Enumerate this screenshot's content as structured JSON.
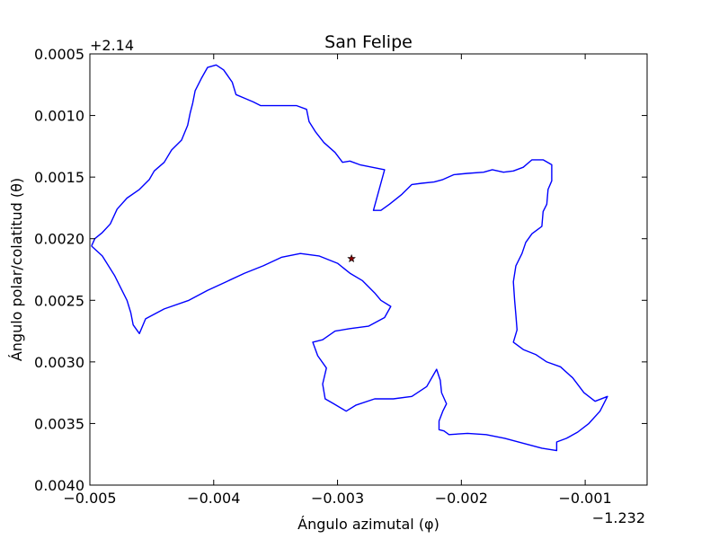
{
  "chart_data": {
    "type": "line",
    "title": "San Felipe",
    "xlabel": "Ángulo azimutal (φ)",
    "ylabel": "Ángulo polar/colatitud (θ)",
    "x_offset_label": "−1.232",
    "y_offset_label": "+2.14",
    "xlim": [
      -0.005,
      -0.0005
    ],
    "ylim": [
      0.0005,
      0.004
    ],
    "y_inverted": true,
    "x_ticks": [
      -0.005,
      -0.004,
      -0.003,
      -0.002,
      -0.001
    ],
    "x_tick_labels": [
      "−0.005",
      "−0.004",
      "−0.003",
      "−0.002",
      "−0.001"
    ],
    "y_ticks": [
      0.0005,
      0.001,
      0.0015,
      0.002,
      0.0025,
      0.003,
      0.0035,
      0.004
    ],
    "y_tick_labels": [
      "0.0005",
      "0.0010",
      "0.0015",
      "0.0020",
      "0.0025",
      "0.0030",
      "0.0035",
      "0.0040"
    ],
    "grid": false,
    "line_color": "#0000ff",
    "marker_color": "#8b0000",
    "series": [
      {
        "values": [
          [
            -0.004987,
            0.00206
          ],
          [
            -0.00496,
            0.002
          ],
          [
            -0.0049,
            0.00195
          ],
          [
            -0.004835,
            0.00188
          ],
          [
            -0.00478,
            0.00176
          ],
          [
            -0.0047,
            0.00167
          ],
          [
            -0.0046,
            0.0016
          ],
          [
            -0.00452,
            0.00152
          ],
          [
            -0.00448,
            0.00145
          ],
          [
            -0.0044,
            0.00138
          ],
          [
            -0.00434,
            0.00128
          ],
          [
            -0.00426,
            0.0012
          ],
          [
            -0.00421,
            0.00108
          ],
          [
            -0.00419,
            0.00098
          ],
          [
            -0.00417,
            0.0009
          ],
          [
            -0.00415,
            0.0008
          ],
          [
            -0.0041,
            0.0007
          ],
          [
            -0.00405,
            0.00061
          ],
          [
            -0.00398,
            0.00059
          ],
          [
            -0.00392,
            0.00063
          ],
          [
            -0.00385,
            0.00073
          ],
          [
            -0.00382,
            0.00083
          ],
          [
            -0.00375,
            0.00086
          ],
          [
            -0.00368,
            0.00089
          ],
          [
            -0.00362,
            0.00092
          ],
          [
            -0.00352,
            0.00092
          ],
          [
            -0.00341,
            0.00092
          ],
          [
            -0.00333,
            0.00092
          ],
          [
            -0.00325,
            0.00095
          ],
          [
            -0.00323,
            0.00105
          ],
          [
            -0.00318,
            0.00113
          ],
          [
            -0.00311,
            0.00122
          ],
          [
            -0.00302,
            0.0013
          ],
          [
            -0.00296,
            0.00138
          ],
          [
            -0.0029,
            0.00137
          ],
          [
            -0.00282,
            0.0014
          ],
          [
            -0.00272,
            0.00142
          ],
          [
            -0.00262,
            0.00144
          ],
          [
            -0.00271,
            0.00177
          ],
          [
            -0.00265,
            0.00177
          ],
          [
            -0.00258,
            0.00172
          ],
          [
            -0.00248,
            0.00164
          ],
          [
            -0.0024,
            0.00156
          ],
          [
            -0.00232,
            0.00155
          ],
          [
            -0.00222,
            0.00154
          ],
          [
            -0.00215,
            0.00152
          ],
          [
            -0.00206,
            0.00148
          ],
          [
            -0.00195,
            0.00147
          ],
          [
            -0.00182,
            0.00146
          ],
          [
            -0.00175,
            0.00144
          ],
          [
            -0.00166,
            0.00146
          ],
          [
            -0.00158,
            0.00145
          ],
          [
            -0.0015,
            0.00142
          ],
          [
            -0.00143,
            0.00136
          ],
          [
            -0.00134,
            0.00136
          ],
          [
            -0.00127,
            0.0014
          ],
          [
            -0.00127,
            0.00153
          ],
          [
            -0.0013,
            0.0016
          ],
          [
            -0.00131,
            0.00172
          ],
          [
            -0.00134,
            0.00178
          ],
          [
            -0.00135,
            0.0019
          ],
          [
            -0.00143,
            0.00196
          ],
          [
            -0.00148,
            0.00203
          ],
          [
            -0.00151,
            0.00212
          ],
          [
            -0.00156,
            0.00222
          ],
          [
            -0.00158,
            0.00235
          ],
          [
            -0.00157,
            0.0025
          ],
          [
            -0.00156,
            0.00262
          ],
          [
            -0.00155,
            0.00274
          ],
          [
            -0.00158,
            0.00284
          ],
          [
            -0.0015,
            0.0029
          ],
          [
            -0.0014,
            0.00294
          ],
          [
            -0.00131,
            0.003
          ],
          [
            -0.0012,
            0.00304
          ],
          [
            -0.0011,
            0.00313
          ],
          [
            -0.00101,
            0.00325
          ],
          [
            -0.00092,
            0.00332
          ],
          [
            -0.00082,
            0.00328
          ],
          [
            -0.00088,
            0.0034
          ],
          [
            -0.00097,
            0.0035
          ],
          [
            -0.00106,
            0.00357
          ],
          [
            -0.00115,
            0.00362
          ],
          [
            -0.00123,
            0.00365
          ],
          [
            -0.00123,
            0.00372
          ],
          [
            -0.00135,
            0.0037
          ],
          [
            -0.0015,
            0.00366
          ],
          [
            -0.00165,
            0.00362
          ],
          [
            -0.0018,
            0.00359
          ],
          [
            -0.00195,
            0.00358
          ],
          [
            -0.0021,
            0.00359
          ],
          [
            -0.00214,
            0.00356
          ],
          [
            -0.00218,
            0.00355
          ],
          [
            -0.00218,
            0.00348
          ],
          [
            -0.00215,
            0.0034
          ],
          [
            -0.00212,
            0.00334
          ],
          [
            -0.00216,
            0.00325
          ],
          [
            -0.00217,
            0.00315
          ],
          [
            -0.0022,
            0.00306
          ],
          [
            -0.00228,
            0.0032
          ],
          [
            -0.0024,
            0.00328
          ],
          [
            -0.00255,
            0.0033
          ],
          [
            -0.0027,
            0.0033
          ],
          [
            -0.00285,
            0.00335
          ],
          [
            -0.00293,
            0.0034
          ],
          [
            -0.00303,
            0.00334
          ],
          [
            -0.0031,
            0.0033
          ],
          [
            -0.00312,
            0.00318
          ],
          [
            -0.00309,
            0.00305
          ],
          [
            -0.00316,
            0.00295
          ],
          [
            -0.0032,
            0.00284
          ],
          [
            -0.00312,
            0.00282
          ],
          [
            -0.00302,
            0.00275
          ],
          [
            -0.0029,
            0.00273
          ],
          [
            -0.00275,
            0.00271
          ],
          [
            -0.00262,
            0.00264
          ],
          [
            -0.00257,
            0.00255
          ],
          [
            -0.00265,
            0.0025
          ],
          [
            -0.0027,
            0.00244
          ],
          [
            -0.0028,
            0.00234
          ],
          [
            -0.0029,
            0.00228
          ],
          [
            -0.003,
            0.0022
          ],
          [
            -0.00315,
            0.00214
          ],
          [
            -0.0033,
            0.00212
          ],
          [
            -0.00345,
            0.00215
          ],
          [
            -0.0036,
            0.00222
          ],
          [
            -0.00375,
            0.00228
          ],
          [
            -0.0039,
            0.00235
          ],
          [
            -0.00405,
            0.00242
          ],
          [
            -0.0042,
            0.0025
          ],
          [
            -0.0044,
            0.00257
          ],
          [
            -0.00455,
            0.00265
          ],
          [
            -0.0046,
            0.00277
          ],
          [
            -0.00465,
            0.0027
          ],
          [
            -0.00467,
            0.0026
          ],
          [
            -0.0047,
            0.0025
          ],
          [
            -0.00475,
            0.0024
          ],
          [
            -0.0048,
            0.0023
          ],
          [
            -0.0049,
            0.00214
          ],
          [
            -0.004987,
            0.00206
          ]
        ]
      }
    ],
    "marker": {
      "x": -0.002887,
      "y": 0.002162,
      "symbol": "star"
    }
  }
}
